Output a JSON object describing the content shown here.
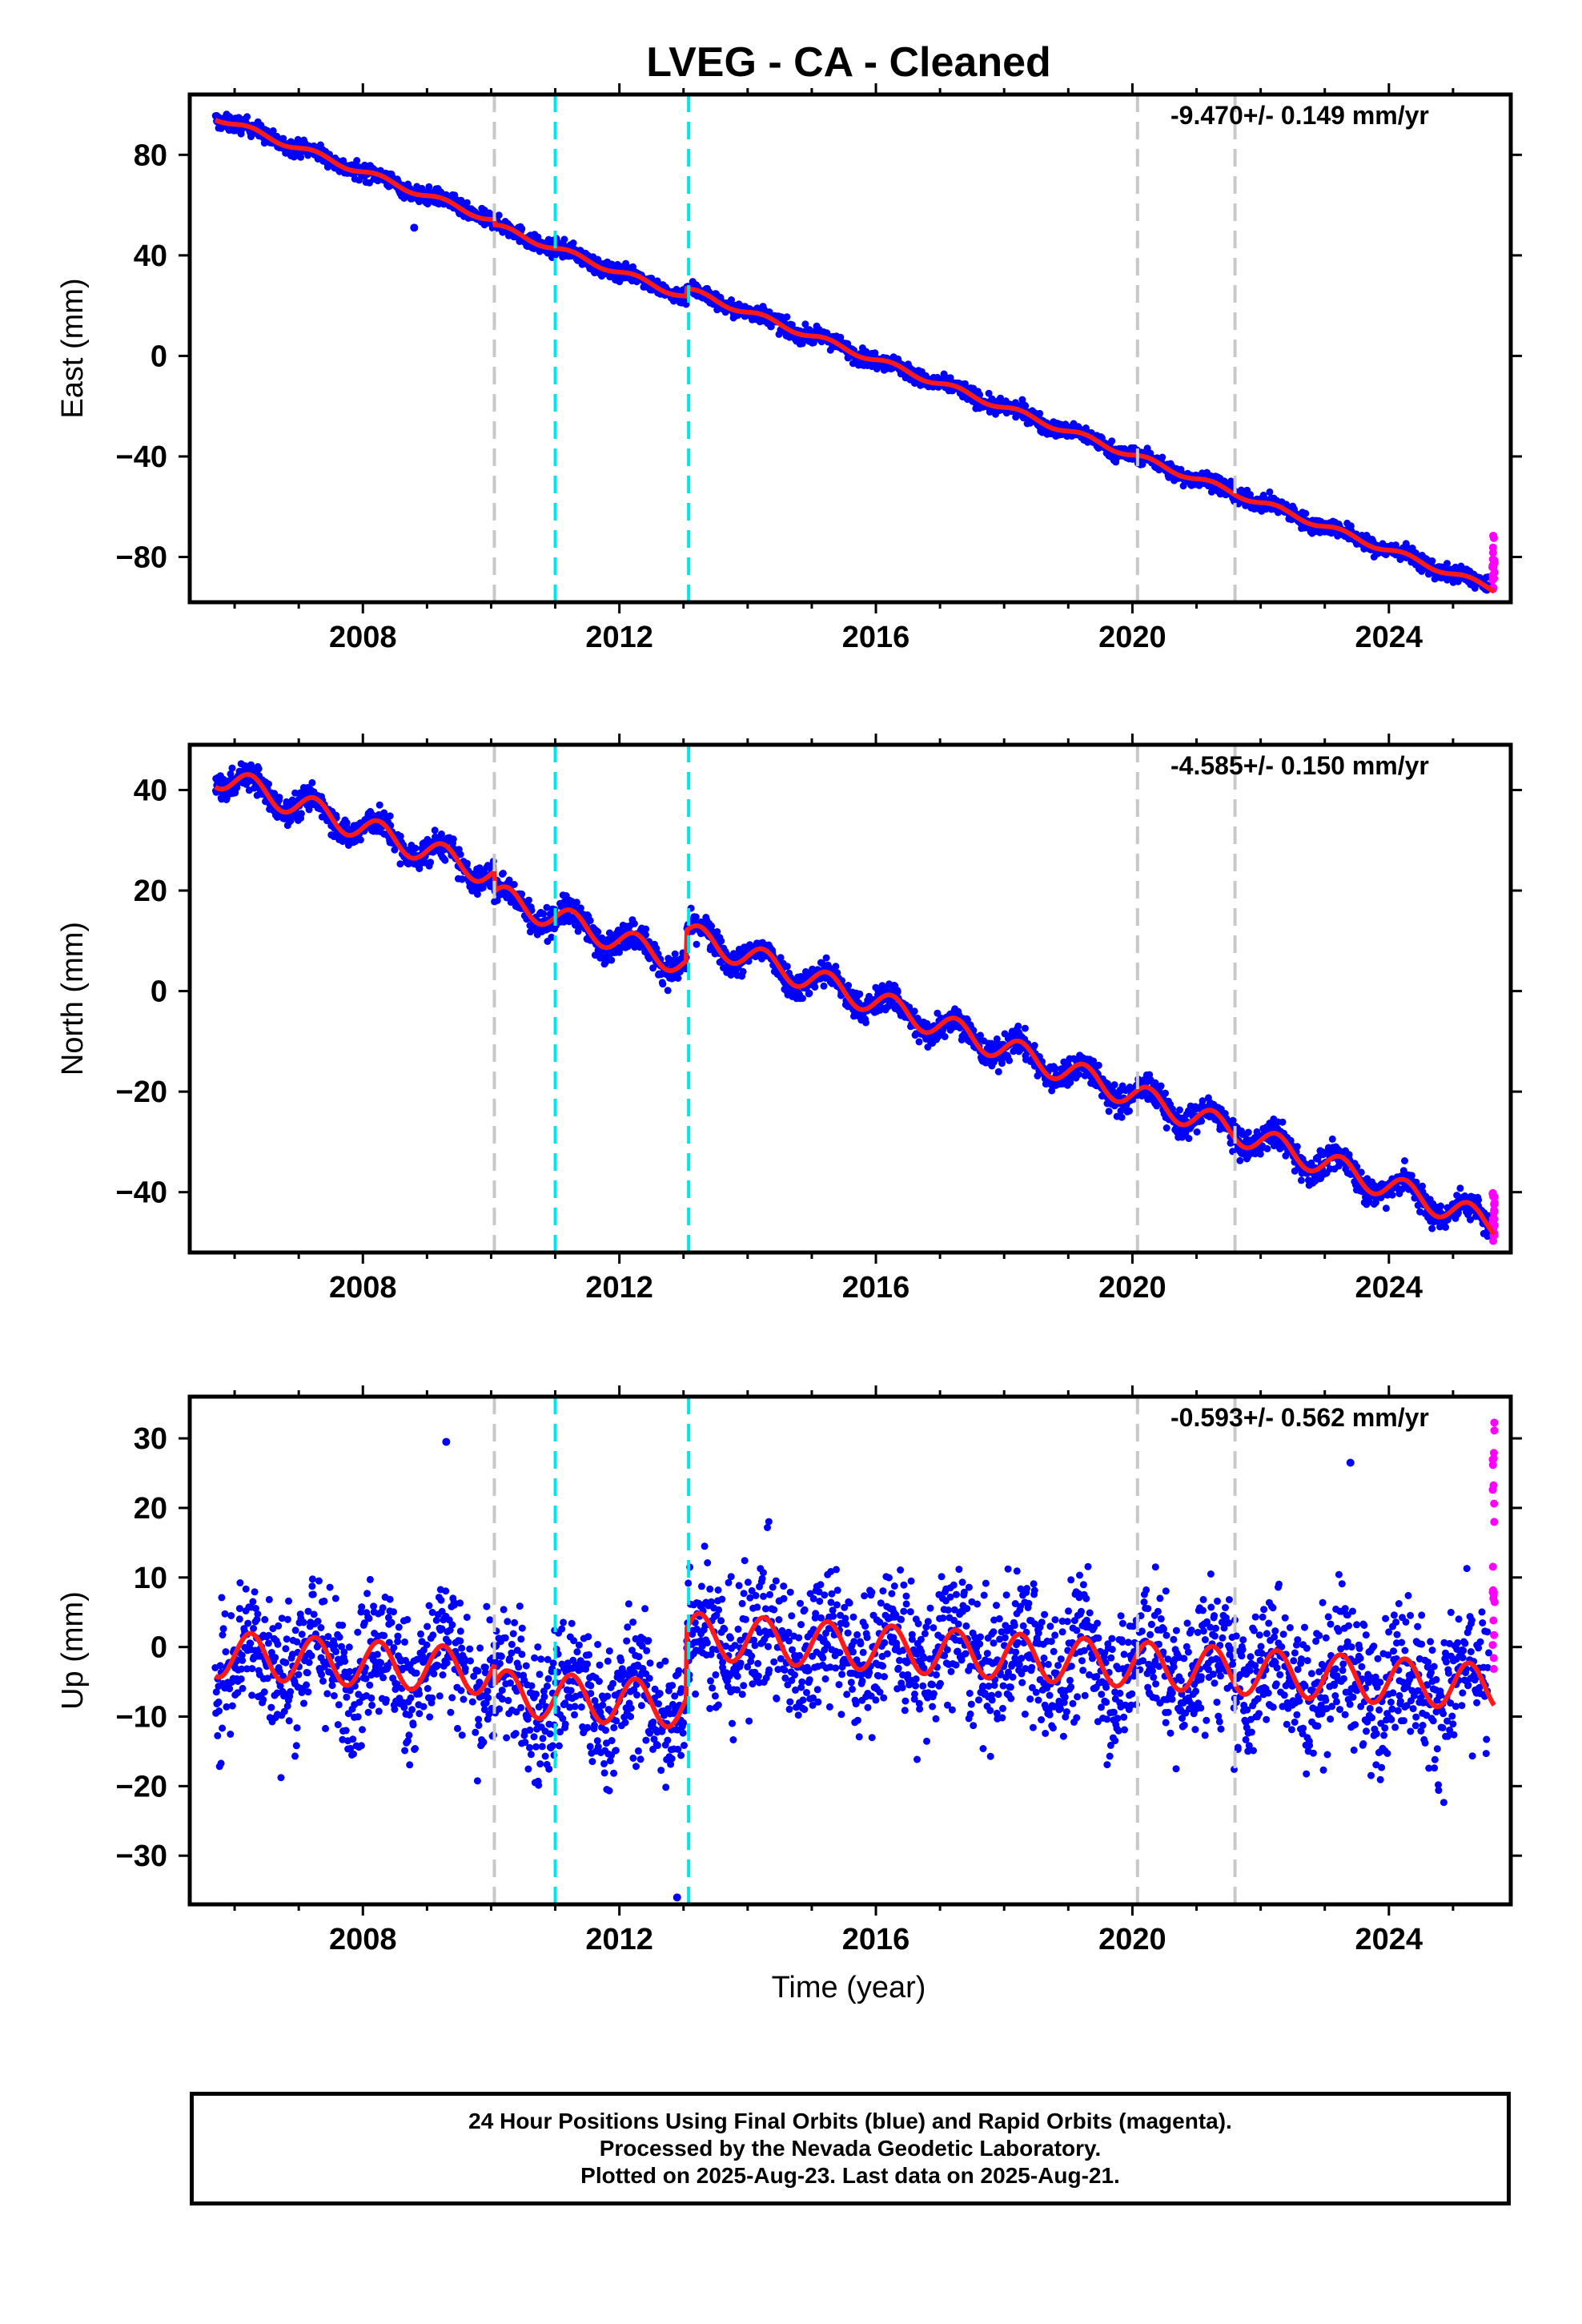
{
  "title": "LVEG  - CA - Cleaned",
  "xlabel": "Time (year)",
  "footer": {
    "line1": "24 Hour Positions Using Final Orbits (blue) and Rapid Orbits (magenta).",
    "line2": "Processed by the Nevada Geodetic Laboratory.",
    "line3": "Plotted on 2025-Aug-23. Last data on 2025-Aug-21."
  },
  "colors": {
    "final": "#0000ff",
    "rapid": "#ff00ff",
    "model": "#ff1a1a",
    "equipment_change": "#c8c8c8",
    "event": "#00e5e5"
  },
  "chart_data": [
    {
      "type": "scatter",
      "ylabel": "East (mm)",
      "rate_label": "-9.470+/- 0.149 mm/yr",
      "xlim": [
        2005.3,
        2025.9
      ],
      "ylim": [
        -98,
        104
      ],
      "xticks": [
        2008,
        2012,
        2016,
        2020,
        2024
      ],
      "yticks": [
        80,
        40,
        0,
        -40,
        -80
      ],
      "start": 2005.7,
      "end": 2025.64,
      "rate": -9.47,
      "offset_at_start": 95,
      "annual_amp": 1.2,
      "noise": 1.6,
      "steps": [
        {
          "t": 2010.05,
          "d": -2
        },
        {
          "t": 2013.05,
          "d": 3
        }
      ],
      "outliers": [
        {
          "x": 2008.8,
          "y": 51
        }
      ],
      "rapid_range": [
        -93,
        -70
      ]
    },
    {
      "type": "scatter",
      "ylabel": "North (mm)",
      "rate_label": "-4.585+/- 0.150 mm/yr",
      "xlim": [
        2005.3,
        2025.9
      ],
      "ylim": [
        -52,
        49
      ],
      "xticks": [
        2008,
        2012,
        2016,
        2020,
        2024
      ],
      "yticks": [
        40,
        20,
        0,
        -20,
        -40
      ],
      "start": 2005.7,
      "end": 2025.64,
      "rate": -4.585,
      "offset_at_start": 43,
      "annual_amp": 2.5,
      "noise": 1.4,
      "steps": [
        {
          "t": 2010.05,
          "d": -4
        },
        {
          "t": 2013.05,
          "d": 6
        }
      ],
      "outliers": [],
      "rapid_range": [
        -50,
        -40
      ]
    },
    {
      "type": "scatter",
      "ylabel": "Up (mm)",
      "rate_label": "-0.593+/- 0.562 mm/yr",
      "xlim": [
        2005.3,
        2025.9
      ],
      "ylim": [
        -37,
        36
      ],
      "xticks": [
        2008,
        2012,
        2016,
        2020,
        2024
      ],
      "yticks": [
        30,
        20,
        10,
        0,
        -10,
        -20,
        -30
      ],
      "start": 2005.7,
      "end": 2025.64,
      "rate": -0.593,
      "offset_at_start": -1,
      "annual_amp": 3.3,
      "noise": 5.0,
      "steps": [
        {
          "t": 2010.05,
          "d": -3
        },
        {
          "t": 2013.05,
          "d": 10
        }
      ],
      "outliers": [
        {
          "x": 2009.3,
          "y": 29.5
        },
        {
          "x": 2012.9,
          "y": -36
        },
        {
          "x": 2023.4,
          "y": 26.5
        }
      ],
      "rapid_range": [
        -4,
        34
      ]
    }
  ],
  "vertical_markers": {
    "equipment_change": [
      2010.05,
      2020.08,
      2021.6
    ],
    "event": [
      2011.0,
      2013.08
    ]
  }
}
